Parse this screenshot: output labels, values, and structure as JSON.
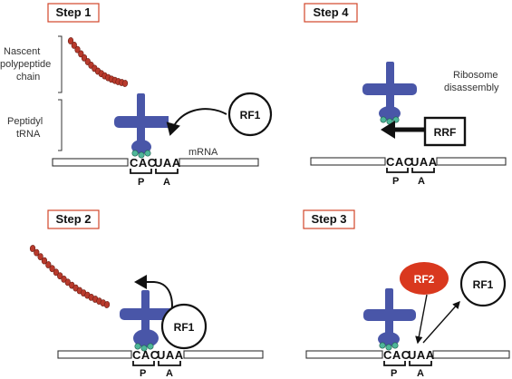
{
  "colors": {
    "step_box_border": "#d2452a",
    "trna": "#4956a8",
    "peptide_beads": "#b83a2c",
    "ribosome_dots": "#4fb79a",
    "rf2": "#d9381e"
  },
  "steps": {
    "s1": "Step 1",
    "s2": "Step 2",
    "s3": "Step 3",
    "s4": "Step 4"
  },
  "labels": {
    "nascent": [
      "Nascent",
      "polypeptide",
      "chain"
    ],
    "peptidyl": [
      "Peptidyl",
      "tRNA"
    ],
    "mrna": "mRNA",
    "disassembly": [
      "Ribosome",
      "disassembly"
    ]
  },
  "codons": {
    "p_codon": "CAC",
    "a_codon": "UAA",
    "p_site": "P",
    "a_site": "A"
  },
  "factors": {
    "rf1": "RF1",
    "rf2": "RF2",
    "rrf": "RRF"
  }
}
